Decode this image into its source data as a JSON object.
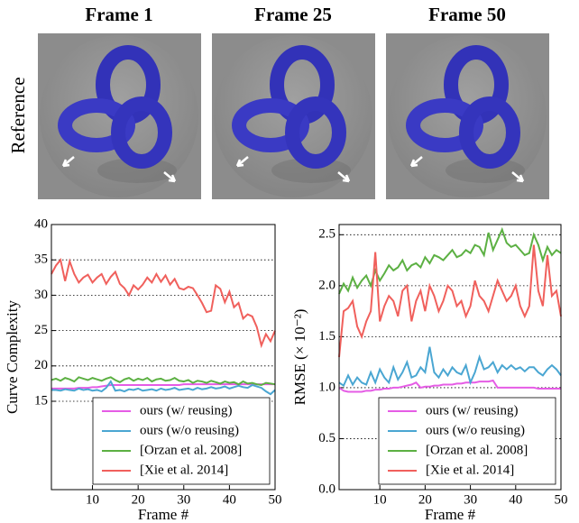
{
  "panels": {
    "titles": [
      "Frame 1",
      "Frame 25",
      "Frame 50"
    ],
    "row_label": "Reference"
  },
  "chart_data": [
    {
      "type": "line",
      "ylabel": "Curve Complexity",
      "xlabel": "Frame #",
      "x": [
        1,
        2,
        3,
        4,
        5,
        6,
        7,
        8,
        9,
        10,
        11,
        12,
        13,
        14,
        15,
        16,
        17,
        18,
        19,
        20,
        21,
        22,
        23,
        24,
        25,
        26,
        27,
        28,
        29,
        30,
        31,
        32,
        33,
        34,
        35,
        36,
        37,
        38,
        39,
        40,
        41,
        42,
        43,
        44,
        45,
        46,
        47,
        48,
        49,
        50
      ],
      "xlim": [
        1,
        50
      ],
      "xticks": [
        10,
        20,
        30,
        40,
        50
      ],
      "ylim": [
        2.5,
        40
      ],
      "yticks": [
        15,
        20,
        25,
        30,
        35,
        40
      ],
      "grid": true,
      "legend": "lower right",
      "series": [
        {
          "name": "ours (w/ reusing)",
          "color": "#e55ce5",
          "values": [
            16.8,
            16.8,
            16.8,
            16.8,
            16.8,
            16.8,
            16.9,
            16.9,
            16.9,
            17.0,
            17.0,
            17.1,
            17.2,
            17.3,
            17.3,
            17.3,
            17.3,
            17.3,
            17.3,
            17.3,
            17.3,
            17.3,
            17.3,
            17.3,
            17.3,
            17.3,
            17.3,
            17.3,
            17.3,
            17.4,
            17.4,
            17.4,
            17.4,
            17.4,
            17.4,
            17.4,
            17.4,
            17.4,
            17.4,
            17.4,
            17.4,
            17.4,
            17.4,
            17.4,
            17.4,
            17.4,
            17.4,
            17.4,
            17.4,
            17.4
          ]
        },
        {
          "name": "ours (w/o reusing)",
          "color": "#4aa6d2",
          "values": [
            16.6,
            16.6,
            16.5,
            16.7,
            16.6,
            16.5,
            16.8,
            16.6,
            16.7,
            16.5,
            16.6,
            16.4,
            16.9,
            17.8,
            16.5,
            16.6,
            16.4,
            16.7,
            16.6,
            16.8,
            16.5,
            16.6,
            16.7,
            16.5,
            16.8,
            16.6,
            16.7,
            16.9,
            16.6,
            16.7,
            16.8,
            16.6,
            16.9,
            16.7,
            16.8,
            17.0,
            16.8,
            16.9,
            17.1,
            16.8,
            17.0,
            17.2,
            17.0,
            16.9,
            17.3,
            17.1,
            16.9,
            16.4,
            16.0,
            16.6
          ]
        },
        {
          "name": "[Orzan et al. 2008]",
          "color": "#5cb043",
          "values": [
            18.0,
            18.2,
            17.9,
            18.3,
            18.1,
            17.8,
            18.4,
            18.2,
            18.0,
            18.3,
            18.1,
            17.9,
            18.2,
            18.4,
            18.0,
            17.7,
            18.1,
            18.3,
            17.9,
            18.2,
            18.0,
            18.3,
            17.8,
            18.1,
            18.2,
            17.9,
            18.0,
            18.3,
            17.9,
            17.8,
            18.0,
            17.6,
            17.9,
            17.8,
            17.6,
            17.9,
            17.7,
            17.5,
            17.8,
            17.6,
            17.7,
            17.4,
            17.8,
            17.5,
            17.6,
            17.4,
            17.3,
            17.6,
            17.5,
            17.4
          ]
        },
        {
          "name": "[Xie et al. 2014]",
          "color": "#f0605c",
          "values": [
            33.0,
            34.2,
            35.0,
            32.0,
            34.8,
            33.0,
            31.8,
            32.5,
            32.9,
            31.8,
            32.5,
            33.0,
            31.6,
            32.6,
            33.3,
            31.6,
            31.0,
            30.0,
            31.4,
            30.8,
            31.5,
            32.5,
            31.8,
            33.0,
            31.9,
            32.8,
            31.5,
            32.3,
            31.0,
            30.8,
            31.2,
            31.0,
            30.0,
            28.9,
            27.6,
            27.8,
            31.4,
            30.9,
            29.0,
            30.5,
            28.3,
            28.9,
            26.7,
            27.3,
            27.0,
            25.5,
            22.9,
            24.5,
            23.5,
            25.0
          ]
        }
      ]
    },
    {
      "type": "line",
      "ylabel": "RMSE (× 10⁻²)",
      "xlabel": "Frame #",
      "x": [
        1,
        2,
        3,
        4,
        5,
        6,
        7,
        8,
        9,
        10,
        11,
        12,
        13,
        14,
        15,
        16,
        17,
        18,
        19,
        20,
        21,
        22,
        23,
        24,
        25,
        26,
        27,
        28,
        29,
        30,
        31,
        32,
        33,
        34,
        35,
        36,
        37,
        38,
        39,
        40,
        41,
        42,
        43,
        44,
        45,
        46,
        47,
        48,
        49,
        50
      ],
      "xlim": [
        1,
        50
      ],
      "xticks": [
        10,
        20,
        30,
        40,
        50
      ],
      "ylim": [
        0,
        2.6
      ],
      "yticks": [
        {
          "value": 0,
          "label": "0.0"
        },
        0.5,
        {
          "value": 1,
          "label": "1.0"
        },
        1.5,
        {
          "value": 2,
          "label": "2.0"
        },
        2.5
      ],
      "grid": true,
      "legend": "lower right",
      "series": [
        {
          "name": "ours (w/ reusing)",
          "color": "#e55ce5",
          "values": [
            1.0,
            0.97,
            0.96,
            0.96,
            0.96,
            0.96,
            0.97,
            0.97,
            0.98,
            0.98,
            0.99,
            0.99,
            1.0,
            1.0,
            1.01,
            1.02,
            1.03,
            1.05,
            1.0,
            1.01,
            1.01,
            1.02,
            1.02,
            1.03,
            1.03,
            1.03,
            1.04,
            1.04,
            1.05,
            1.05,
            1.05,
            1.06,
            1.06,
            1.06,
            1.07,
            1.0,
            1.0,
            1.0,
            1.0,
            1.0,
            1.0,
            1.0,
            1.0,
            1.0,
            0.99,
            0.99,
            0.99,
            0.99,
            0.99,
            0.99
          ]
        },
        {
          "name": "ours (w/o reusing)",
          "color": "#4aa6d2",
          "values": [
            1.05,
            1.02,
            1.12,
            1.03,
            1.1,
            1.05,
            1.03,
            1.15,
            1.05,
            1.18,
            1.1,
            1.05,
            1.2,
            1.08,
            1.15,
            1.25,
            1.1,
            1.12,
            1.2,
            1.15,
            1.4,
            1.15,
            1.1,
            1.18,
            1.12,
            1.2,
            1.15,
            1.13,
            1.22,
            1.05,
            1.15,
            1.3,
            1.18,
            1.2,
            1.25,
            1.15,
            1.22,
            1.18,
            1.22,
            1.18,
            1.2,
            1.16,
            1.2,
            1.2,
            1.15,
            1.12,
            1.18,
            1.22,
            1.18,
            1.12
          ]
        },
        {
          "name": "[Orzan et al. 2008]",
          "color": "#5cb043",
          "values": [
            1.92,
            2.02,
            1.95,
            2.08,
            1.98,
            2.05,
            2.1,
            2.0,
            2.15,
            2.05,
            2.12,
            2.2,
            2.15,
            2.18,
            2.25,
            2.15,
            2.2,
            2.22,
            2.18,
            2.28,
            2.22,
            2.3,
            2.28,
            2.25,
            2.3,
            2.35,
            2.28,
            2.3,
            2.35,
            2.32,
            2.4,
            2.38,
            2.3,
            2.52,
            2.35,
            2.45,
            2.55,
            2.42,
            2.38,
            2.4,
            2.35,
            2.3,
            2.32,
            2.5,
            2.4,
            2.25,
            2.38,
            2.3,
            2.35,
            2.32
          ]
        },
        {
          "name": "[Xie et al. 2014]",
          "color": "#f0605c",
          "values": [
            1.3,
            1.75,
            1.78,
            1.85,
            1.6,
            1.5,
            1.65,
            1.75,
            2.33,
            1.65,
            1.8,
            1.9,
            1.85,
            1.7,
            1.95,
            2.0,
            1.65,
            1.85,
            1.95,
            1.75,
            2.0,
            1.9,
            1.75,
            1.85,
            2.0,
            1.95,
            1.8,
            1.85,
            1.7,
            1.8,
            2.05,
            1.9,
            1.85,
            1.75,
            1.9,
            2.05,
            1.95,
            1.85,
            1.9,
            2.0,
            1.8,
            1.7,
            1.8,
            2.4,
            1.95,
            1.8,
            2.3,
            1.9,
            1.95,
            1.7
          ]
        }
      ]
    }
  ]
}
